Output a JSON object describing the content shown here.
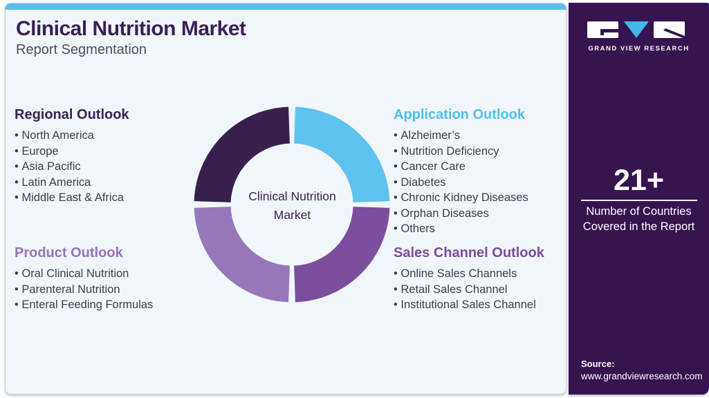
{
  "header": {
    "title": "Clinical Nutrition Market",
    "subtitle": "Report Segmentation"
  },
  "sections": [
    {
      "title": "Regional Outlook",
      "color": "#3a2055",
      "items": [
        "North America",
        "Europe",
        "Asia Pacific",
        "Latin America",
        "Middle East & Africa"
      ]
    },
    {
      "title": "Application Outlook",
      "color": "#4fc0ef",
      "items": [
        "Alzheimer’s",
        "Nutrition Deficiency",
        "Cancer Care",
        "Diabetes",
        "Chronic Kidney Diseases",
        "Orphan Diseases",
        "Others"
      ]
    },
    {
      "title": "Product Outlook",
      "color": "#9673b9",
      "items": [
        "Oral Clinical Nutrition",
        "Parenteral Nutrition",
        "Enteral Feeding Formulas"
      ]
    },
    {
      "title": "Sales Channel Outlook",
      "color": "#7b4a9e",
      "items": [
        "Online Sales Channels",
        "Retail Sales Channel",
        "Institutional Sales Channel"
      ]
    }
  ],
  "donut": {
    "center_label": "Clinical Nutrition Market",
    "segments": [
      {
        "label": "Application Outlook",
        "color": "#5fc1ed",
        "value": 25
      },
      {
        "label": "Sales Channel Outlook",
        "color": "#7b4f9e",
        "value": 25
      },
      {
        "label": "Product Outlook",
        "color": "#9678ba",
        "value": 25
      },
      {
        "label": "Regional Outlook",
        "color": "#38204e",
        "value": 25
      }
    ]
  },
  "sidebar": {
    "brand": "GRAND VIEW RESEARCH",
    "stat": {
      "value": "21+",
      "label": "Number of Countries Covered in the Report"
    },
    "source": {
      "label": "Source:",
      "url": "www.grandviewresearch.com"
    }
  },
  "colors": {
    "top-bar": "#57bfea",
    "panel-bg": "#f1f6fb",
    "panel-border": "#c7ced8",
    "sidebar-bg": "#351450",
    "title": "#3a2055",
    "subtitle": "#4c4c56",
    "body-text": "#3d3d47",
    "logo-blue": "#41b7e8",
    "white": "#ffffff"
  }
}
